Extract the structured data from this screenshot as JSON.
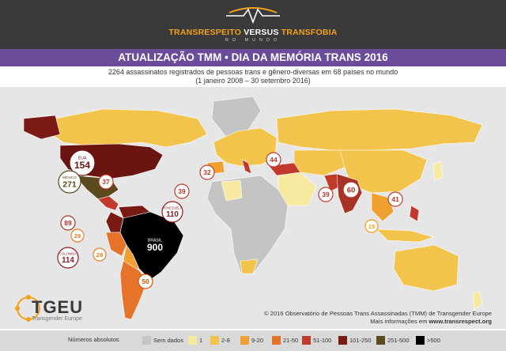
{
  "header": {
    "brand_part1": "TRANSRESPEITO ",
    "brand_part2": "VERSUS ",
    "brand_part3": "TRANSFOBIA",
    "brand_sub": "NO MUNDO"
  },
  "title": "ATUALIZAÇÃO TMM • DIA DA MEMÓRIA TRANS 2016",
  "subtitle": "2264 assassinatos registrados de pessoas trans e gênero-diversas em 68 países no mundo",
  "dates": "(1 janeiro 2008 – 30 setembro 2016)",
  "markers": [
    {
      "label": "EUA",
      "value": "154",
      "color": "#6b1512"
    },
    {
      "label": "MÉXICO",
      "value": "271",
      "color": "#5c4a1d"
    },
    {
      "label": "VENEZUELA",
      "value": "110",
      "color": "#8a1c1c"
    },
    {
      "label": "COLOMBIA",
      "value": "114",
      "color": "#8a1c1c"
    },
    {
      "label": "BRASIL",
      "value": "900",
      "color": "#000000"
    },
    {
      "label": "",
      "value": "37",
      "color": "#c0392b"
    },
    {
      "label": "",
      "value": "89",
      "color": "#a93226"
    },
    {
      "label": "",
      "value": "39",
      "color": "#c0392b"
    },
    {
      "label": "",
      "value": "29",
      "color": "#e67e22"
    },
    {
      "label": "",
      "value": "28",
      "color": "#e67e22"
    },
    {
      "label": "",
      "value": "50",
      "color": "#d35400"
    },
    {
      "label": "",
      "value": "32",
      "color": "#c0392b"
    },
    {
      "label": "",
      "value": "44",
      "color": "#c0392b"
    },
    {
      "label": "",
      "value": "39",
      "color": "#c0392b"
    },
    {
      "label": "",
      "value": "60",
      "color": "#a93226"
    },
    {
      "label": "",
      "value": "41",
      "color": "#c0392b"
    },
    {
      "label": "",
      "value": "15",
      "color": "#f39c12"
    }
  ],
  "credit": {
    "line1": "© 2016 Observatório de Pessoas Trans Assassinadas (TMM) de Transgender Europe",
    "line2": "Mais informações em ",
    "url": "www.transrespect.org"
  },
  "tgeu": {
    "name": "TGEU",
    "sub": "Transgender Europe"
  },
  "legend": {
    "label": "Números absolutos",
    "items": [
      {
        "label": "Sem dados",
        "color": "#c4c4c4"
      },
      {
        "label": "1",
        "color": "#f7e9a0"
      },
      {
        "label": "2-8",
        "color": "#f2c44b"
      },
      {
        "label": "9-20",
        "color": "#f0a030"
      },
      {
        "label": "21-50",
        "color": "#e5732a"
      },
      {
        "label": "51-100",
        "color": "#c0392b"
      },
      {
        "label": "101-250",
        "color": "#7a1a14"
      },
      {
        "label": "251-500",
        "color": "#5c4a1d"
      },
      {
        ">500": "",
        "label": ">500",
        "color": "#000000"
      }
    ]
  }
}
